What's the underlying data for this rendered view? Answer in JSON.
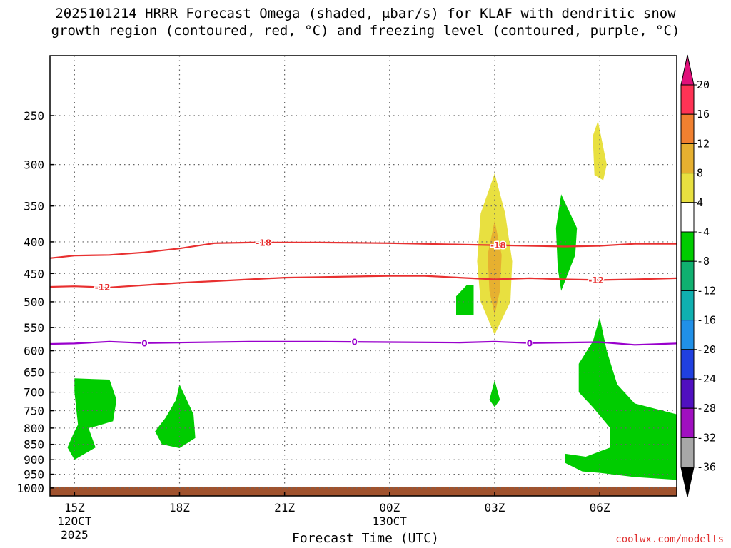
{
  "chart_data": {
    "type": "heatmap",
    "title_line1": "2025101214 HRRR Forecast Omega (shaded, μbar/s) for KLAF with dendritic snow",
    "title_line2": "growth region (contoured, red, °C) and freezing level (contoured, purple, °C)",
    "xlabel": "Forecast Time (UTC)",
    "credit": "coolwx.com/modelts",
    "y_axis": {
      "scale": "pressure",
      "ticks": [
        250,
        300,
        350,
        400,
        450,
        500,
        550,
        600,
        650,
        700,
        750,
        800,
        850,
        900,
        950,
        1000
      ],
      "range": [
        200,
        1030
      ]
    },
    "x_axis": {
      "range_hours": [
        14.3,
        32.2
      ],
      "ticks": [
        {
          "hour": 15,
          "label": "15Z",
          "sub1": "12OCT",
          "sub2": "2025"
        },
        {
          "hour": 18,
          "label": "18Z",
          "sub1": "",
          "sub2": ""
        },
        {
          "hour": 21,
          "label": "21Z",
          "sub1": "",
          "sub2": ""
        },
        {
          "hour": 24,
          "label": "00Z",
          "sub1": "13OCT",
          "sub2": ""
        },
        {
          "hour": 27,
          "label": "03Z",
          "sub1": "",
          "sub2": ""
        },
        {
          "hour": 30,
          "label": "06Z",
          "sub1": "",
          "sub2": ""
        }
      ]
    },
    "grid": true,
    "colorbar": {
      "labels": [
        "20",
        "16",
        "12",
        "8",
        "4",
        "-4",
        "-8",
        "-12",
        "-16",
        "-20",
        "-24",
        "-28",
        "-32",
        "-36"
      ],
      "colors": [
        "#ff3355",
        "#f08030",
        "#e6b030",
        "#e8e040",
        "#ffffff",
        "#00cc00",
        "#10b070",
        "#10b0b0",
        "#2090e8",
        "#2040e0",
        "#5010c0",
        "#a010c0",
        "#a8a8a8"
      ],
      "top_arrow_color": "#e0107a",
      "bottom_arrow_color": "#000000"
    },
    "contours": [
      {
        "label": "-18",
        "color": "#e83030",
        "label_hours": [
          20.4,
          27.1
        ],
        "points": [
          [
            14.3,
            425
          ],
          [
            15,
            421
          ],
          [
            16,
            420
          ],
          [
            17,
            416
          ],
          [
            18,
            410
          ],
          [
            19,
            402
          ],
          [
            20,
            401
          ],
          [
            22,
            401
          ],
          [
            24,
            402
          ],
          [
            26,
            404
          ],
          [
            27,
            405
          ],
          [
            28,
            406
          ],
          [
            29,
            407
          ],
          [
            30,
            406
          ],
          [
            31,
            403
          ],
          [
            32.2,
            403
          ]
        ]
      },
      {
        "label": "-12",
        "color": "#e83030",
        "label_hours": [
          15.8,
          29.9
        ],
        "points": [
          [
            14.3,
            473
          ],
          [
            15,
            472
          ],
          [
            16,
            474
          ],
          [
            17,
            470
          ],
          [
            18,
            466
          ],
          [
            19,
            463
          ],
          [
            20,
            460
          ],
          [
            21,
            457
          ],
          [
            22,
            456
          ],
          [
            24,
            454
          ],
          [
            25,
            454
          ],
          [
            26,
            457
          ],
          [
            27,
            460
          ],
          [
            28,
            458
          ],
          [
            29,
            460
          ],
          [
            30,
            461
          ],
          [
            31,
            460
          ],
          [
            32.2,
            458
          ]
        ]
      },
      {
        "label": "0",
        "color": "#9900cc",
        "label_hours": [
          17,
          23,
          28
        ],
        "points": [
          [
            14.3,
            585
          ],
          [
            15,
            584
          ],
          [
            16,
            580
          ],
          [
            17,
            583
          ],
          [
            18,
            582
          ],
          [
            20,
            580
          ],
          [
            22,
            580
          ],
          [
            24,
            581
          ],
          [
            26,
            582
          ],
          [
            27,
            580
          ],
          [
            28,
            583
          ],
          [
            29,
            582
          ],
          [
            30,
            581
          ],
          [
            31,
            587
          ],
          [
            32.2,
            584
          ]
        ]
      }
    ],
    "shaded_regions": [
      {
        "value": "-4 to -8",
        "color": "#00cc00",
        "points": [
          [
            15,
            665
          ],
          [
            16,
            668
          ],
          [
            16.2,
            720
          ],
          [
            16.1,
            780
          ],
          [
            15.6,
            795
          ],
          [
            15.4,
            800
          ],
          [
            15.6,
            860
          ],
          [
            15,
            900
          ],
          [
            14.8,
            860
          ],
          [
            15,
            810
          ],
          [
            15.1,
            790
          ],
          [
            15,
            700
          ]
        ]
      },
      {
        "value": "-4 to -8",
        "color": "#00cc00",
        "points": [
          [
            18,
            680
          ],
          [
            18.4,
            760
          ],
          [
            18.45,
            830
          ],
          [
            18,
            862
          ],
          [
            17.5,
            850
          ],
          [
            17.3,
            810
          ],
          [
            17.6,
            770
          ],
          [
            17.9,
            720
          ]
        ]
      },
      {
        "value": "-4 to -8",
        "color": "#00cc00",
        "points": [
          [
            26.2,
            470
          ],
          [
            26.4,
            470
          ],
          [
            26.4,
            525
          ],
          [
            25.9,
            525
          ],
          [
            25.9,
            490
          ]
        ]
      },
      {
        "value": "-4 to -8",
        "color": "#00cc00",
        "points": [
          [
            27,
            670
          ],
          [
            27.15,
            720
          ],
          [
            27,
            740
          ],
          [
            26.85,
            720
          ]
        ]
      },
      {
        "value": "-4 to -8",
        "color": "#00cc00",
        "points": [
          [
            28.9,
            335
          ],
          [
            29.35,
            380
          ],
          [
            29.3,
            420
          ],
          [
            28.9,
            480
          ],
          [
            28.8,
            440
          ],
          [
            28.75,
            380
          ]
        ]
      },
      {
        "value": "-4 to -8",
        "color": "#00cc00",
        "points": [
          [
            30,
            530
          ],
          [
            30.2,
            600
          ],
          [
            30.5,
            680
          ],
          [
            31,
            730
          ],
          [
            32.2,
            760
          ],
          [
            32.2,
            970
          ],
          [
            31,
            960
          ],
          [
            30,
            945
          ],
          [
            29.5,
            940
          ],
          [
            29.0,
            910
          ],
          [
            29.0,
            880
          ],
          [
            29.6,
            890
          ],
          [
            30.3,
            860
          ],
          [
            30.3,
            800
          ],
          [
            29.8,
            740
          ],
          [
            29.4,
            700
          ],
          [
            29.4,
            630
          ],
          [
            29.8,
            580
          ]
        ]
      },
      {
        "value": "4 to 8",
        "color": "#e8e040",
        "points": [
          [
            27,
            310
          ],
          [
            27.3,
            360
          ],
          [
            27.5,
            430
          ],
          [
            27.45,
            500
          ],
          [
            27,
            565
          ],
          [
            26.6,
            500
          ],
          [
            26.5,
            430
          ],
          [
            26.6,
            360
          ]
        ]
      },
      {
        "value": "8 to 12",
        "color": "#e6b030",
        "points": [
          [
            27,
            370
          ],
          [
            27.2,
            420
          ],
          [
            27.15,
            480
          ],
          [
            27,
            525
          ],
          [
            26.85,
            480
          ],
          [
            26.8,
            420
          ]
        ]
      },
      {
        "value": "4 to 8",
        "color": "#e8e040",
        "points": [
          [
            29.95,
            255
          ],
          [
            30.2,
            300
          ],
          [
            30.1,
            318
          ],
          [
            29.85,
            312
          ],
          [
            29.8,
            270
          ]
        ]
      }
    ],
    "ground": {
      "color": "#a0522d",
      "top_pressure": 995
    }
  }
}
